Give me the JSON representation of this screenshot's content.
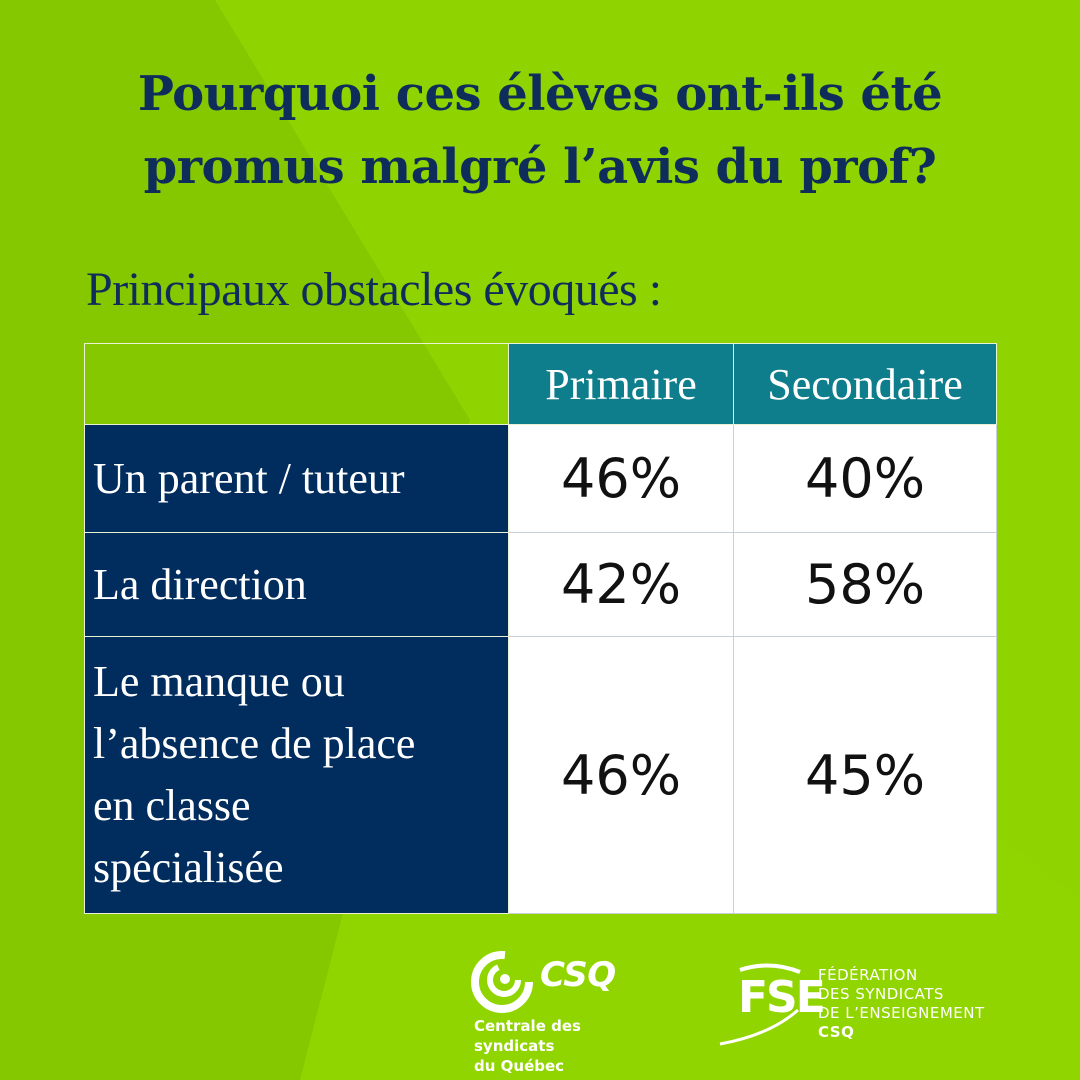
{
  "title": {
    "line1": "Pourquoi ces élèves ont-ils été",
    "line2": "promus malgré l’avis du prof?"
  },
  "subtitle": "Principaux obstacles évoqués :",
  "colors": {
    "background": "#8fd400",
    "title": "#0f2d5a",
    "header_teal": "#0e7d8c",
    "row_navy": "#002d5e",
    "cell_white": "#ffffff"
  },
  "chart_data": {
    "type": "table",
    "columns": [
      "Primaire",
      "Secondaire"
    ],
    "rows": [
      {
        "label_lines": [
          "Un parent / tuteur"
        ],
        "values": [
          "46%",
          "40%"
        ]
      },
      {
        "label_lines": [
          "La direction"
        ],
        "values": [
          "42%",
          "58%"
        ]
      },
      {
        "label_lines": [
          "Le manque ou",
          "l’absence de place",
          "en classe",
          "spécialisée"
        ],
        "values": [
          "46%",
          "45%"
        ]
      }
    ]
  },
  "logos": {
    "csq": {
      "name": "CSQ",
      "subtitle_line1": "Centrale des syndicats",
      "subtitle_line2": "du Québec",
      "icon": "csq-swirl-icon"
    },
    "fse": {
      "mark": "FSE",
      "line1": "FÉDÉRATION",
      "line2": "DES SYNDICATS",
      "line3": "DE L’ENSEIGNEMENT",
      "line4": "CSQ",
      "icon": "fse-mark-icon"
    }
  }
}
